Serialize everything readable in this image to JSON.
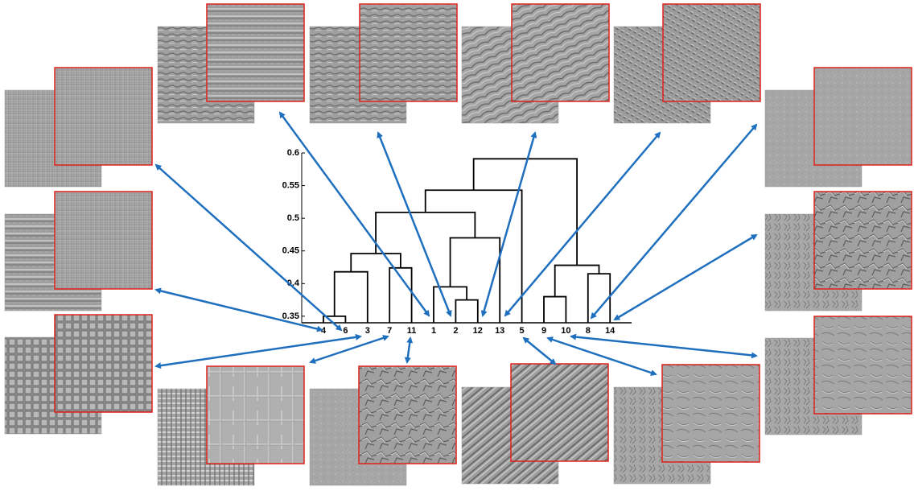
{
  "chart_data": {
    "type": "dendrogram",
    "tree": {
      "height": 0.591,
      "children": [
        {
          "height": 0.543,
          "children": [
            {
              "height": 0.509,
              "children": [
                {
                  "height": 0.446,
                  "children": [
                    {
                      "height": 0.418,
                      "children": [
                        {
                          "height": 0.35,
                          "children": [
                            "4",
                            "6"
                          ]
                        },
                        "3"
                      ]
                    },
                    {
                      "height": 0.424,
                      "children": [
                        "7",
                        "11"
                      ]
                    }
                  ]
                },
                {
                  "height": 0.47,
                  "children": [
                    {
                      "height": 0.395,
                      "children": [
                        "1",
                        {
                          "height": 0.375,
                          "children": [
                            "2",
                            "12"
                          ]
                        }
                      ]
                    },
                    "13"
                  ]
                }
              ]
            },
            "5"
          ]
        },
        {
          "height": 0.428,
          "children": [
            {
              "height": 0.38,
              "children": [
                "9",
                "10"
              ]
            },
            {
              "height": 0.415,
              "children": [
                "8",
                "14"
              ]
            }
          ]
        }
      ]
    },
    "ylim": [
      0.34,
      0.6
    ],
    "yticks": [
      0.35,
      0.4,
      0.45,
      0.5,
      0.55,
      0.6
    ]
  }
}
